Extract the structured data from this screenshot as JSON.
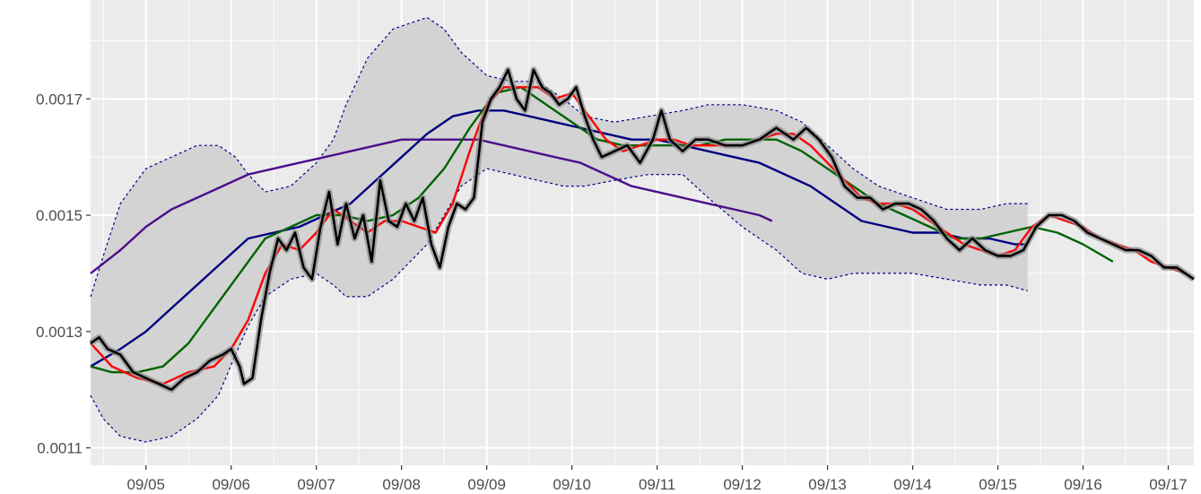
{
  "chart_data": {
    "type": "line",
    "title": "",
    "xlabel": "",
    "ylabel": "",
    "x_range": [
      4.35,
      17.3
    ],
    "ylim": [
      0.00107,
      0.00187
    ],
    "x_ticks": [
      {
        "value": 5,
        "label": "09/05"
      },
      {
        "value": 6,
        "label": "09/06"
      },
      {
        "value": 7,
        "label": "09/07"
      },
      {
        "value": 8,
        "label": "09/08"
      },
      {
        "value": 9,
        "label": "09/09"
      },
      {
        "value": 10,
        "label": "09/10"
      },
      {
        "value": 11,
        "label": "09/11"
      },
      {
        "value": 12,
        "label": "09/12"
      },
      {
        "value": 13,
        "label": "09/13"
      },
      {
        "value": 14,
        "label": "09/14"
      },
      {
        "value": 15,
        "label": "09/15"
      },
      {
        "value": 16,
        "label": "09/16"
      },
      {
        "value": 17,
        "label": "09/17"
      }
    ],
    "y_ticks": [
      {
        "value": 0.0011,
        "label": "0.0011"
      },
      {
        "value": 0.0013,
        "label": "0.0013"
      },
      {
        "value": 0.0015,
        "label": "0.0015"
      },
      {
        "value": 0.0017,
        "label": "0.0017"
      }
    ],
    "grid": true,
    "x_unit": "day of September",
    "colors": {
      "panel": "#ebebeb",
      "grid": "#ffffff",
      "band_fill": "#d3d3d3",
      "band_edge": "#00008b",
      "price": "#000000",
      "price_band": "#8c8c8c"
    },
    "band": {
      "x": [
        4.35,
        4.5,
        4.7,
        5.0,
        5.3,
        5.6,
        5.85,
        6.05,
        6.2,
        6.4,
        6.7,
        7.0,
        7.2,
        7.35,
        7.6,
        7.9,
        8.1,
        8.3,
        8.5,
        8.7,
        9.0,
        9.3,
        9.6,
        9.9,
        10.15,
        10.5,
        10.9,
        11.3,
        11.6,
        12.0,
        12.4,
        12.7,
        13.0,
        13.3,
        13.6,
        14.0,
        14.4,
        14.8,
        15.1,
        15.35
      ],
      "upper": [
        0.00136,
        0.00143,
        0.00152,
        0.00158,
        0.0016,
        0.00162,
        0.00162,
        0.0016,
        0.00157,
        0.00154,
        0.00155,
        0.00159,
        0.00163,
        0.00169,
        0.00177,
        0.00182,
        0.00183,
        0.00184,
        0.00182,
        0.00178,
        0.00174,
        0.00173,
        0.00173,
        0.0017,
        0.00167,
        0.00166,
        0.00167,
        0.00168,
        0.00169,
        0.00169,
        0.00168,
        0.00166,
        0.00162,
        0.00158,
        0.00155,
        0.00153,
        0.00151,
        0.00151,
        0.00152,
        0.00152
      ],
      "lower": [
        0.00119,
        0.00115,
        0.00112,
        0.00111,
        0.00112,
        0.00115,
        0.00119,
        0.00126,
        0.00131,
        0.00136,
        0.00139,
        0.0014,
        0.00138,
        0.00136,
        0.00136,
        0.00139,
        0.00142,
        0.00145,
        0.0015,
        0.00155,
        0.00158,
        0.00157,
        0.00156,
        0.00155,
        0.00155,
        0.00156,
        0.00157,
        0.00157,
        0.00153,
        0.00148,
        0.00144,
        0.0014,
        0.00139,
        0.0014,
        0.0014,
        0.0014,
        0.00139,
        0.00138,
        0.00138,
        0.00137
      ]
    },
    "price": {
      "x": [
        4.35,
        4.45,
        4.55,
        4.7,
        4.85,
        5.0,
        5.15,
        5.3,
        5.45,
        5.6,
        5.75,
        5.9,
        6.0,
        6.1,
        6.15,
        6.25,
        6.35,
        6.45,
        6.55,
        6.65,
        6.75,
        6.85,
        6.95,
        7.05,
        7.15,
        7.25,
        7.35,
        7.45,
        7.55,
        7.65,
        7.75,
        7.85,
        7.95,
        8.05,
        8.15,
        8.25,
        8.35,
        8.45,
        8.55,
        8.65,
        8.75,
        8.85,
        8.95,
        9.05,
        9.15,
        9.25,
        9.35,
        9.45,
        9.55,
        9.65,
        9.75,
        9.85,
        9.95,
        10.05,
        10.15,
        10.25,
        10.35,
        10.5,
        10.65,
        10.8,
        10.95,
        11.05,
        11.15,
        11.3,
        11.45,
        11.6,
        11.8,
        12.0,
        12.2,
        12.4,
        12.6,
        12.75,
        12.9,
        13.05,
        13.2,
        13.35,
        13.5,
        13.65,
        13.8,
        13.95,
        14.1,
        14.25,
        14.4,
        14.55,
        14.7,
        14.85,
        15.0,
        15.15,
        15.3,
        15.45,
        15.6,
        15.75,
        15.9,
        16.05,
        16.2,
        16.35,
        16.5,
        16.65,
        16.8,
        16.95,
        17.1,
        17.2,
        17.3
      ],
      "y": [
        0.00128,
        0.00129,
        0.00127,
        0.00126,
        0.00123,
        0.00122,
        0.00121,
        0.0012,
        0.00122,
        0.00123,
        0.00125,
        0.00126,
        0.00127,
        0.00124,
        0.00121,
        0.00122,
        0.00132,
        0.0014,
        0.00146,
        0.00144,
        0.00147,
        0.00141,
        0.00139,
        0.00148,
        0.00154,
        0.00145,
        0.00152,
        0.00146,
        0.0015,
        0.00142,
        0.00156,
        0.00149,
        0.00148,
        0.00152,
        0.00149,
        0.00153,
        0.00145,
        0.00141,
        0.00148,
        0.00152,
        0.00151,
        0.00153,
        0.00166,
        0.0017,
        0.00172,
        0.00175,
        0.0017,
        0.00168,
        0.00175,
        0.00172,
        0.00171,
        0.00169,
        0.0017,
        0.00172,
        0.00167,
        0.00163,
        0.0016,
        0.00161,
        0.00162,
        0.00159,
        0.00163,
        0.00168,
        0.00163,
        0.00161,
        0.00163,
        0.00163,
        0.00162,
        0.00162,
        0.00163,
        0.00165,
        0.00163,
        0.00165,
        0.00163,
        0.0016,
        0.00155,
        0.00153,
        0.00153,
        0.00151,
        0.00152,
        0.00152,
        0.00151,
        0.00149,
        0.00146,
        0.00144,
        0.00146,
        0.00144,
        0.00143,
        0.00143,
        0.00144,
        0.00148,
        0.0015,
        0.0015,
        0.00149,
        0.00147,
        0.00146,
        0.00145,
        0.00144,
        0.00144,
        0.00143,
        0.00141,
        0.00141,
        0.0014,
        0.00139
      ]
    },
    "series": [
      {
        "color": "#ff0000",
        "x": [
          4.35,
          4.6,
          4.9,
          5.2,
          5.5,
          5.8,
          6.0,
          6.2,
          6.4,
          6.6,
          6.8,
          7.0,
          7.2,
          7.4,
          7.6,
          7.8,
          8.0,
          8.2,
          8.4,
          8.6,
          8.8,
          9.0,
          9.2,
          9.4,
          9.6,
          9.8,
          10.0,
          10.2,
          10.4,
          10.6,
          10.8,
          11.0,
          11.2,
          11.4,
          11.6,
          11.8,
          12.0,
          12.2,
          12.4,
          12.6,
          12.8,
          13.0,
          13.2,
          13.4,
          13.6,
          13.8,
          14.0,
          14.2,
          14.4,
          14.6,
          14.8,
          15.0,
          15.2,
          15.4,
          15.6,
          15.8,
          16.0,
          16.2,
          16.4,
          16.6,
          16.8,
          17.0,
          17.2
        ],
        "y": [
          0.00128,
          0.00124,
          0.00122,
          0.00121,
          0.00123,
          0.00124,
          0.00127,
          0.00132,
          0.0014,
          0.00145,
          0.00144,
          0.00147,
          0.00151,
          0.00149,
          0.00147,
          0.00149,
          0.00149,
          0.00148,
          0.00147,
          0.00152,
          0.00161,
          0.00169,
          0.00172,
          0.00172,
          0.00172,
          0.0017,
          0.00171,
          0.00167,
          0.00163,
          0.00161,
          0.00162,
          0.00163,
          0.00163,
          0.00162,
          0.00162,
          0.00162,
          0.00162,
          0.00163,
          0.00164,
          0.00164,
          0.00162,
          0.00159,
          0.00156,
          0.00153,
          0.00152,
          0.00152,
          0.00151,
          0.00149,
          0.00147,
          0.00145,
          0.00144,
          0.00143,
          0.00144,
          0.00148,
          0.0015,
          0.00149,
          0.00148,
          0.00146,
          0.00145,
          0.00144,
          0.00142,
          0.00141,
          0.0014
        ]
      },
      {
        "color": "#006400",
        "x": [
          4.35,
          4.6,
          4.9,
          5.2,
          5.5,
          5.8,
          6.1,
          6.4,
          6.7,
          7.0,
          7.3,
          7.6,
          7.9,
          8.2,
          8.5,
          8.8,
          9.1,
          9.4,
          9.7,
          10.0,
          10.3,
          10.6,
          10.9,
          11.2,
          11.5,
          11.8,
          12.1,
          12.4,
          12.7,
          13.0,
          13.3,
          13.6,
          13.9,
          14.2,
          14.5,
          14.8,
          15.1,
          15.4,
          15.7,
          16.0,
          16.35
        ],
        "y": [
          0.00124,
          0.00123,
          0.00123,
          0.00124,
          0.00128,
          0.00134,
          0.0014,
          0.00146,
          0.00148,
          0.0015,
          0.0015,
          0.00149,
          0.0015,
          0.00153,
          0.00158,
          0.00165,
          0.00171,
          0.00172,
          0.00169,
          0.00166,
          0.00163,
          0.00162,
          0.00162,
          0.00162,
          0.00162,
          0.00163,
          0.00163,
          0.00163,
          0.00161,
          0.00158,
          0.00155,
          0.00152,
          0.0015,
          0.00148,
          0.00146,
          0.00146,
          0.00147,
          0.00148,
          0.00147,
          0.00145,
          0.00142
        ]
      },
      {
        "color": "#000080",
        "x": [
          4.35,
          4.7,
          5.0,
          5.3,
          5.6,
          5.9,
          6.2,
          6.5,
          6.8,
          7.1,
          7.4,
          7.7,
          8.0,
          8.3,
          8.6,
          8.9,
          9.2,
          9.5,
          9.8,
          10.1,
          10.4,
          10.7,
          11.0,
          11.3,
          11.6,
          11.9,
          12.2,
          12.5,
          12.8,
          13.1,
          13.4,
          13.7,
          14.0,
          14.3,
          14.6,
          14.9,
          15.2,
          15.35
        ],
        "y": [
          0.00124,
          0.00127,
          0.0013,
          0.00134,
          0.00138,
          0.00142,
          0.00146,
          0.00147,
          0.00148,
          0.0015,
          0.00152,
          0.00156,
          0.0016,
          0.00164,
          0.00167,
          0.00168,
          0.00168,
          0.00167,
          0.00166,
          0.00165,
          0.00164,
          0.00163,
          0.00163,
          0.00162,
          0.00161,
          0.0016,
          0.00159,
          0.00157,
          0.00155,
          0.00152,
          0.00149,
          0.00148,
          0.00147,
          0.00147,
          0.00146,
          0.00146,
          0.00145,
          0.00145
        ]
      },
      {
        "color": "#4b0e8a",
        "x": [
          4.35,
          4.7,
          5.0,
          5.3,
          5.6,
          5.9,
          6.2,
          6.5,
          6.8,
          7.1,
          7.4,
          7.7,
          8.0,
          8.3,
          8.6,
          8.9,
          9.2,
          9.5,
          9.8,
          10.1,
          10.4,
          10.7,
          11.0,
          11.3,
          11.6,
          11.9,
          12.2,
          12.35
        ],
        "y": [
          0.0014,
          0.00144,
          0.00148,
          0.00151,
          0.00153,
          0.00155,
          0.00157,
          0.00158,
          0.00159,
          0.0016,
          0.00161,
          0.00162,
          0.00163,
          0.00163,
          0.00163,
          0.00163,
          0.00162,
          0.00161,
          0.0016,
          0.00159,
          0.00157,
          0.00155,
          0.00154,
          0.00153,
          0.00152,
          0.00151,
          0.0015,
          0.00149
        ]
      }
    ]
  }
}
